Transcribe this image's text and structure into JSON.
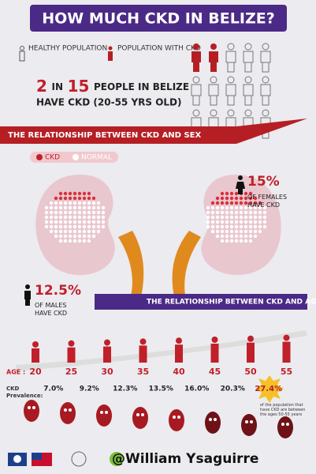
{
  "title": "HOW MUCH CKD IN BELIZE?",
  "legend": {
    "healthy": "HEALTHY POPULATION",
    "ckd": "POPULATION WITH CKD"
  },
  "headline": {
    "count": "2",
    "in": "IN",
    "total": "15",
    "rest": "PEOPLE IN BELIZE",
    "line2": "HAVE CKD (20-55 YRS OLD)"
  },
  "sex_section": {
    "title": "THE RELATIONSHIP BETWEEN CKD AND SEX",
    "key": {
      "ckd": "CKD",
      "normal": "NORMAL"
    },
    "female": {
      "value": "15%",
      "label": "OF FEMALES HAVE CKD"
    },
    "male": {
      "value": "12.5%",
      "label": "OF MALES HAVE CKD"
    }
  },
  "age_section": {
    "title": "THE RELATIONSHIP BETWEEN CKD AND AGE",
    "age_label": "AGE :",
    "ages": [
      "20",
      "25",
      "30",
      "35",
      "40",
      "45",
      "50",
      "55"
    ],
    "prevalence_label": "CKD Prevalence:",
    "prevalence": [
      "7.0%",
      "9.2%",
      "12.3%",
      "13.5%",
      "16.0%",
      "20.3%",
      "27.4%"
    ],
    "note": "of the population that have CKD are between the ages 50-55 years"
  },
  "watermark": "@William Ysaguirre"
}
